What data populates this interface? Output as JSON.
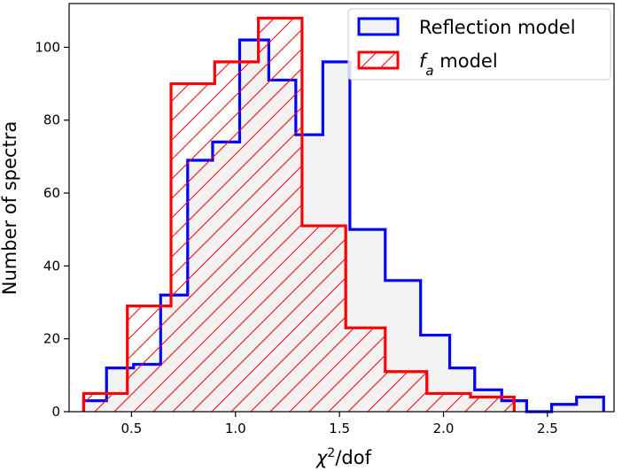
{
  "chart_data": {
    "type": "histogram",
    "xlabel": {
      "base": "χ",
      "sup": "2",
      "rest": "/dof"
    },
    "ylabel": "Number of spectra",
    "xlim": [
      0.2,
      2.82
    ],
    "ylim": [
      0,
      112
    ],
    "x_ticks": [
      0.5,
      1.0,
      1.5,
      2.0,
      2.5
    ],
    "x_tick_labels": [
      "0.5",
      "1.0",
      "1.5",
      "2.0",
      "2.5"
    ],
    "y_ticks": [
      0,
      20,
      40,
      60,
      80,
      100
    ],
    "y_tick_labels": [
      "0",
      "20",
      "40",
      "60",
      "80",
      "100"
    ],
    "legend_position": "upper-right",
    "series": [
      {
        "name": "Reflection model",
        "color": "#0000ff",
        "fill": "#f2f2f2",
        "hatch": "none",
        "bin_edges": [
          0.27,
          0.38,
          0.51,
          0.64,
          0.77,
          0.89,
          1.02,
          1.16,
          1.29,
          1.42,
          1.55,
          1.72,
          1.89,
          2.03,
          2.15,
          2.28,
          2.4,
          2.52,
          2.64,
          2.77
        ],
        "counts": [
          3,
          12,
          13,
          32,
          69,
          74,
          102,
          91,
          76,
          96,
          50,
          36,
          21,
          12,
          6,
          3,
          0,
          2,
          4
        ]
      },
      {
        "name_base": "f",
        "name_sub": "a",
        "name_rest": " model",
        "color": "#ff0000",
        "fill": "none",
        "hatch": "diagonal",
        "bin_edges": [
          0.27,
          0.48,
          0.69,
          0.9,
          1.11,
          1.32,
          1.53,
          1.72,
          1.92,
          2.13,
          2.34
        ],
        "counts": [
          5,
          29,
          90,
          96,
          108,
          51,
          23,
          11,
          5,
          4
        ]
      }
    ]
  }
}
